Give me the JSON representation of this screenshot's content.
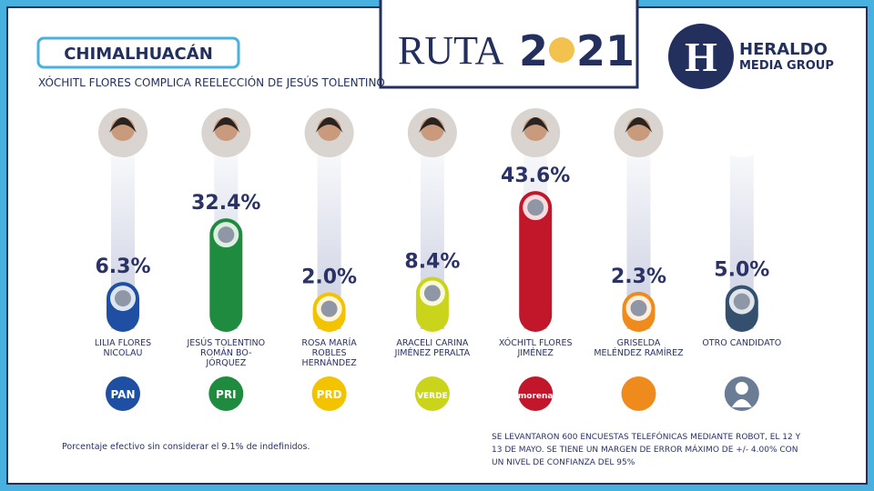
{
  "chart_data": {
    "type": "bar",
    "title": "CHIMALHUACÁN",
    "subtitle": "XÓCHITL FLORES COMPLICA REELECCIÓN DE JESÚS TOLENTINO",
    "categories": [
      "LILIA FLORES NICOLAU",
      "JESÚS TOLENTINO ROMÁN BO-JÓRQUEZ",
      "ROSA MARÍA ROBLES HERNÁNDEZ",
      "ARACELI CARINA JIMÉNEZ PERALTA",
      "XÓCHITL FLORES JIMÉNEZ",
      "GRISELDA MELÉNDEZ RAMÍREZ",
      "OTRO CANDIDATO"
    ],
    "values": [
      6.3,
      32.4,
      2.0,
      8.4,
      43.6,
      2.3,
      5.0
    ],
    "value_labels": [
      "6.3%",
      "32.4%",
      "2.0%",
      "8.4%",
      "43.6%",
      "2.3%",
      "5.0%"
    ],
    "colors": [
      "#1f4fa3",
      "#1e8b3e",
      "#f4c300",
      "#c9d41a",
      "#c2172b",
      "#ef8a1d",
      "#34506e"
    ],
    "parties": [
      "PAN",
      "PRI",
      "PRD",
      "VERDE",
      "morena",
      null,
      null
    ],
    "ylim": [
      0,
      50
    ],
    "notes": [
      "Porcentaje efectivo sin considerar el 9.1% de indefinidos.",
      "SE LEVANTARON 600 ENCUESTAS TELEFÓNICAS MEDIANTE ROBOT, EL 12 Y 13 DE MAYO. SE TIENE UN MARGEN DE ERROR MÁXIMO DE +/- 4.00% CON UN NIVEL DE CONFIANZA DEL 95%"
    ],
    "logo": {
      "word": "RUTA",
      "year_start": "2",
      "year_end": "21"
    },
    "brand": {
      "initial": "H",
      "name": "HERALDO",
      "group": "MEDIA GROUP"
    }
  }
}
